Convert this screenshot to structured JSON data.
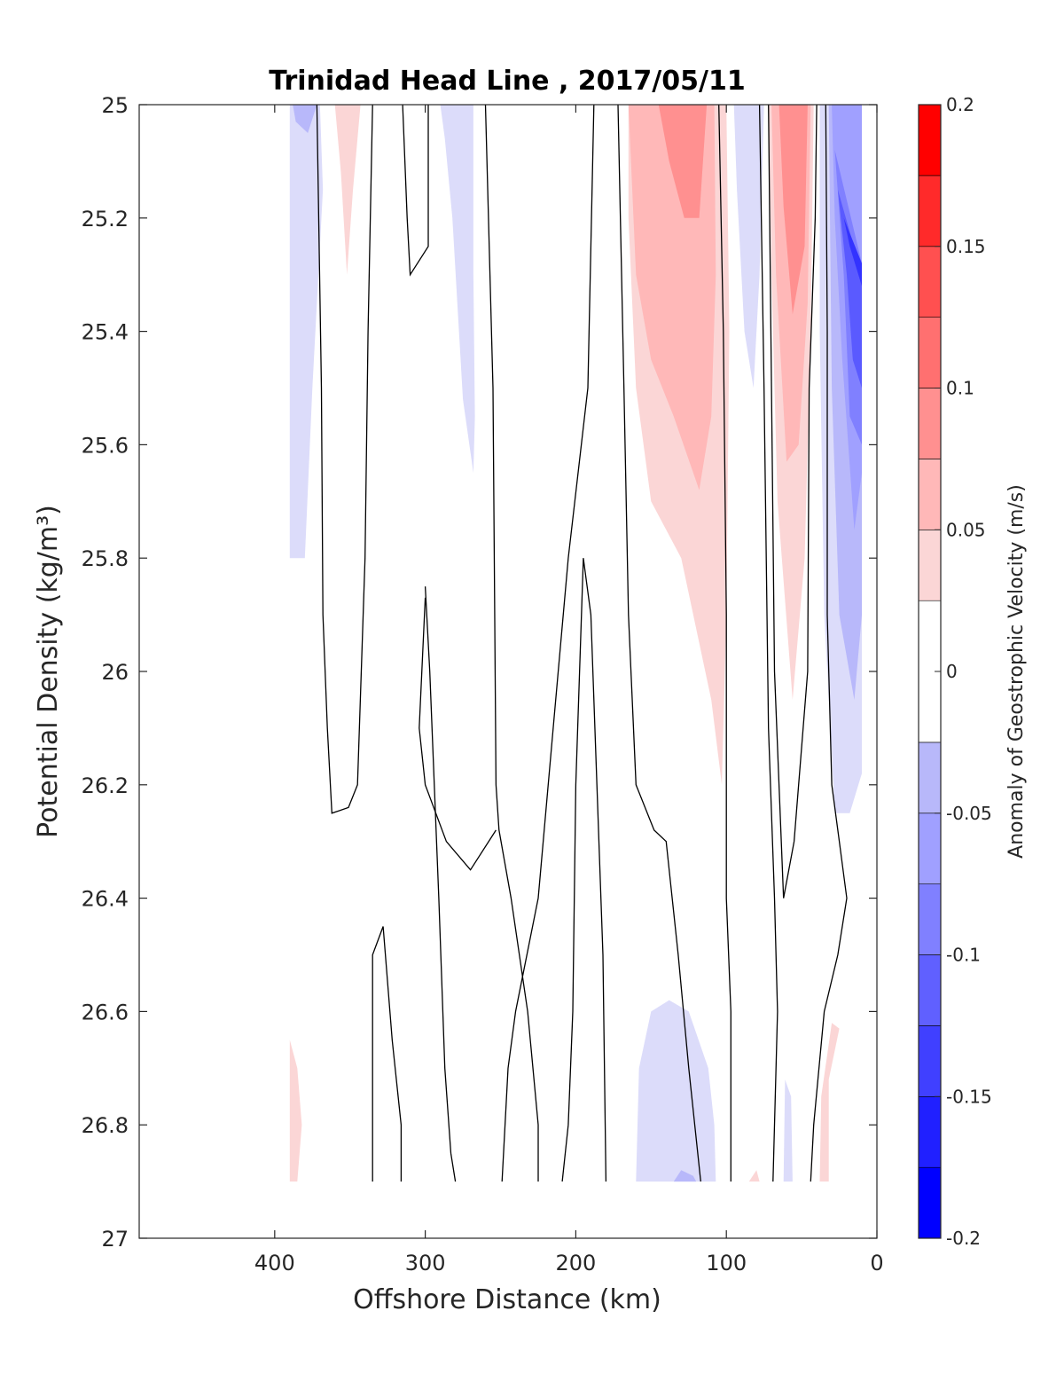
{
  "chart_data": {
    "type": "filled-contour",
    "title": "Trinidad Head Line , 2017/05/11",
    "xlabel": "Offshore Distance (km)",
    "ylabel": "Potential Density (kg/m³)",
    "x_reversed": true,
    "y_reversed": true,
    "xlim": [
      490,
      0
    ],
    "ylim": [
      25,
      27
    ],
    "x_ticks": [
      400,
      300,
      200,
      100,
      0
    ],
    "y_ticks": [
      25,
      25.2,
      25.4,
      25.6,
      25.8,
      26,
      26.2,
      26.4,
      26.6,
      26.8,
      27
    ],
    "colorbar": {
      "label": "Anomaly of Geostrophic Velocity (m/s)",
      "range": [
        -0.2,
        0.2
      ],
      "ticks": [
        -0.2,
        -0.15,
        -0.1,
        -0.05,
        0,
        0.05,
        0.1,
        0.15,
        0.2
      ],
      "tick_labels": [
        "-0.2",
        "-0.15",
        "-0.1",
        "-0.05",
        "0",
        "0.05",
        "0.1",
        "0.15",
        "0.2"
      ],
      "levels": [
        {
          "from": -0.2,
          "to": -0.175,
          "color": "#0000ff"
        },
        {
          "from": -0.175,
          "to": -0.15,
          "color": "#2020ff"
        },
        {
          "from": -0.15,
          "to": -0.125,
          "color": "#4040ff"
        },
        {
          "from": -0.125,
          "to": -0.1,
          "color": "#6060ff"
        },
        {
          "from": -0.1,
          "to": -0.075,
          "color": "#8080ff"
        },
        {
          "from": -0.075,
          "to": -0.05,
          "color": "#a0a0ff"
        },
        {
          "from": -0.05,
          "to": -0.025,
          "color": "#b8b8fa"
        },
        {
          "from": -0.025,
          "to": 0.025,
          "color": "#ffffff"
        },
        {
          "from": 0.025,
          "to": 0.05,
          "color": "#fbd6d6"
        },
        {
          "from": 0.05,
          "to": 0.075,
          "color": "#ffb8b8"
        },
        {
          "from": 0.075,
          "to": 0.1,
          "color": "#ff9090"
        },
        {
          "from": 0.1,
          "to": 0.125,
          "color": "#ff7070"
        },
        {
          "from": 0.125,
          "to": 0.15,
          "color": "#ff5050"
        },
        {
          "from": 0.15,
          "to": 0.175,
          "color": "#ff2a2a"
        },
        {
          "from": 0.175,
          "to": 0.2,
          "color": "#ff0000"
        }
      ]
    },
    "regions": [
      {
        "sign": "negative",
        "level": -0.035,
        "color": "#dcdcfa",
        "outline": [
          [
            390,
            25
          ],
          [
            370,
            25
          ],
          [
            368,
            25.15
          ],
          [
            375,
            25.5
          ],
          [
            380,
            25.8
          ],
          [
            390,
            25.8
          ]
        ]
      },
      {
        "sign": "negative",
        "level": -0.06,
        "color": "#b8b8fa",
        "outline": [
          [
            388,
            25
          ],
          [
            372,
            25
          ],
          [
            378,
            25.05
          ],
          [
            386,
            25.03
          ]
        ]
      },
      {
        "sign": "positive",
        "level": 0.035,
        "color": "#fbd6d6",
        "outline": [
          [
            360,
            25
          ],
          [
            343,
            25
          ],
          [
            348,
            25.15
          ],
          [
            352,
            25.3
          ],
          [
            356,
            25.12
          ]
        ]
      },
      {
        "sign": "negative",
        "level": -0.035,
        "color": "#dcdcfa",
        "outline": [
          [
            290,
            25
          ],
          [
            268,
            25
          ],
          [
            268,
            25.3
          ],
          [
            267,
            25.55
          ],
          [
            268,
            25.65
          ],
          [
            275,
            25.52
          ],
          [
            282,
            25.2
          ],
          [
            287,
            25.06
          ]
        ]
      },
      {
        "sign": "positive",
        "level": 0.035,
        "color": "#fbd6d6",
        "outline": [
          [
            165,
            25
          ],
          [
            100,
            25
          ],
          [
            98,
            25.4
          ],
          [
            100,
            25.9
          ],
          [
            103,
            26.2
          ],
          [
            110,
            26.05
          ],
          [
            130,
            25.8
          ],
          [
            150,
            25.7
          ],
          [
            160,
            25.5
          ],
          [
            165,
            25.2
          ]
        ]
      },
      {
        "sign": "positive",
        "level": 0.06,
        "color": "#ffb8b8",
        "outline": [
          [
            165,
            25
          ],
          [
            108,
            25
          ],
          [
            107,
            25.3
          ],
          [
            110,
            25.55
          ],
          [
            118,
            25.68
          ],
          [
            135,
            25.55
          ],
          [
            150,
            25.45
          ],
          [
            160,
            25.3
          ]
        ]
      },
      {
        "sign": "positive",
        "level": 0.085,
        "color": "#ff9090",
        "outline": [
          [
            145,
            25
          ],
          [
            113,
            25
          ],
          [
            118,
            25.2
          ],
          [
            128,
            25.2
          ],
          [
            138,
            25.1
          ]
        ]
      },
      {
        "sign": "negative",
        "level": -0.035,
        "color": "#dcdcfa",
        "outline": [
          [
            95,
            25
          ],
          [
            75,
            25
          ],
          [
            78,
            25.3
          ],
          [
            82,
            25.5
          ],
          [
            88,
            25.4
          ],
          [
            93,
            25.15
          ]
        ]
      },
      {
        "sign": "positive",
        "level": 0.035,
        "color": "#fbd6d6",
        "outline": [
          [
            72,
            25
          ],
          [
            42,
            25
          ],
          [
            44,
            25.4
          ],
          [
            48,
            25.8
          ],
          [
            56,
            26.05
          ],
          [
            66,
            25.7
          ],
          [
            70,
            25.3
          ]
        ]
      },
      {
        "sign": "positive",
        "level": 0.06,
        "color": "#ffb8b8",
        "outline": [
          [
            70,
            25
          ],
          [
            44,
            25
          ],
          [
            46,
            25.35
          ],
          [
            52,
            25.6
          ],
          [
            60,
            25.63
          ],
          [
            67,
            25.3
          ]
        ]
      },
      {
        "sign": "positive",
        "level": 0.085,
        "color": "#ff9090",
        "outline": [
          [
            65,
            25
          ],
          [
            46,
            25
          ],
          [
            48,
            25.25
          ],
          [
            56,
            25.37
          ],
          [
            62,
            25.18
          ]
        ]
      },
      {
        "sign": "negative",
        "level": -0.035,
        "color": "#dcdcfa",
        "outline": [
          [
            38,
            25
          ],
          [
            10,
            25
          ],
          [
            10,
            26.18
          ],
          [
            18,
            26.25
          ],
          [
            28,
            26.25
          ],
          [
            35,
            25.9
          ],
          [
            38,
            25.4
          ]
        ]
      },
      {
        "sign": "negative",
        "level": -0.06,
        "color": "#b8b8fa",
        "outline": [
          [
            32,
            25
          ],
          [
            10,
            25
          ],
          [
            10,
            25.9
          ],
          [
            15,
            26.05
          ],
          [
            25,
            25.9
          ],
          [
            30,
            25.5
          ]
        ]
      },
      {
        "sign": "negative",
        "level": -0.085,
        "color": "#a0a0ff",
        "outline": [
          [
            30,
            25
          ],
          [
            10,
            25
          ],
          [
            10,
            25.65
          ],
          [
            15,
            25.75
          ],
          [
            23,
            25.45
          ],
          [
            28,
            25.2
          ]
        ]
      },
      {
        "sign": "negative",
        "level": -0.11,
        "color": "#8080ff",
        "outline": [
          [
            28,
            25.08
          ],
          [
            10,
            25.28
          ],
          [
            10,
            25.6
          ],
          [
            18,
            25.55
          ],
          [
            22,
            25.3
          ]
        ]
      },
      {
        "sign": "negative",
        "level": -0.135,
        "color": "#5a5aff",
        "outline": [
          [
            26,
            25.15
          ],
          [
            10,
            25.3
          ],
          [
            10,
            25.5
          ],
          [
            16,
            25.45
          ],
          [
            20,
            25.3
          ]
        ]
      },
      {
        "sign": "negative",
        "level": -0.16,
        "color": "#3333ff",
        "outline": [
          [
            22,
            25.2
          ],
          [
            10,
            25.28
          ],
          [
            10,
            25.32
          ],
          [
            18,
            25.25
          ]
        ]
      },
      {
        "sign": "positive",
        "level": 0.035,
        "color": "#fbd6d6",
        "outline": [
          [
            390,
            26.65
          ],
          [
            390,
            26.9
          ],
          [
            385,
            26.9
          ],
          [
            382,
            26.8
          ],
          [
            385,
            26.7
          ]
        ]
      },
      {
        "sign": "negative",
        "level": -0.035,
        "color": "#dcdcfa",
        "outline": [
          [
            160,
            26.9
          ],
          [
            158,
            26.7
          ],
          [
            150,
            26.6
          ],
          [
            138,
            26.58
          ],
          [
            125,
            26.6
          ],
          [
            112,
            26.7
          ],
          [
            108,
            26.8
          ],
          [
            107,
            26.9
          ]
        ]
      },
      {
        "sign": "negative",
        "level": -0.06,
        "color": "#b8b8fa",
        "outline": [
          [
            135,
            26.9
          ],
          [
            130,
            26.88
          ],
          [
            122,
            26.89
          ],
          [
            120,
            26.9
          ]
        ]
      },
      {
        "sign": "positive",
        "level": 0.035,
        "color": "#fbd6d6",
        "outline": [
          [
            85,
            26.9
          ],
          [
            80,
            26.88
          ],
          [
            78,
            26.9
          ]
        ]
      },
      {
        "sign": "negative",
        "level": -0.035,
        "color": "#dcdcfa",
        "outline": [
          [
            62,
            26.9
          ],
          [
            61,
            26.72
          ],
          [
            57,
            26.75
          ],
          [
            56,
            26.9
          ]
        ]
      },
      {
        "sign": "positive",
        "level": 0.035,
        "color": "#fbd6d6",
        "outline": [
          [
            38,
            26.9
          ],
          [
            37,
            26.75
          ],
          [
            30,
            26.62
          ],
          [
            25,
            26.63
          ],
          [
            32,
            26.72
          ],
          [
            32,
            26.9
          ]
        ]
      }
    ],
    "zero_contours": [
      [
        [
          372,
          25
        ],
        [
          369,
          25.5
        ],
        [
          368,
          25.9
        ],
        [
          365,
          26.1
        ],
        [
          362,
          26.25
        ],
        [
          351,
          26.24
        ],
        [
          345,
          26.2
        ],
        [
          340,
          25.8
        ],
        [
          338,
          25.4
        ],
        [
          335,
          25
        ]
      ],
      [
        [
          315,
          25
        ],
        [
          312,
          25.2
        ],
        [
          310,
          25.3
        ],
        [
          298,
          25.25
        ],
        [
          298,
          25
        ]
      ],
      [
        [
          300,
          25.85
        ],
        [
          297,
          26.0
        ],
        [
          291,
          26.4
        ],
        [
          287,
          26.7
        ],
        [
          283,
          26.85
        ],
        [
          280,
          26.9
        ]
      ],
      [
        [
          335,
          26.9
        ],
        [
          335,
          26.5
        ],
        [
          328,
          26.45
        ],
        [
          322,
          26.65
        ],
        [
          316,
          26.8
        ],
        [
          316,
          26.9
        ]
      ],
      [
        [
          260,
          25
        ],
        [
          255,
          25.5
        ],
        [
          253,
          26.2
        ],
        [
          251,
          26.28
        ],
        [
          243,
          26.4
        ],
        [
          232,
          26.6
        ],
        [
          225,
          26.8
        ],
        [
          225,
          26.9
        ]
      ],
      [
        [
          300,
          25.87
        ],
        [
          304,
          26.1
        ],
        [
          300,
          26.2
        ],
        [
          286,
          26.3
        ],
        [
          270,
          26.35
        ],
        [
          253,
          26.28
        ]
      ],
      [
        [
          188,
          25
        ],
        [
          192,
          25.5
        ],
        [
          205,
          25.8
        ],
        [
          215,
          26.1
        ],
        [
          225,
          26.4
        ],
        [
          240,
          26.6
        ],
        [
          245,
          26.7
        ],
        [
          249,
          26.9
        ]
      ],
      [
        [
          209,
          26.9
        ],
        [
          205,
          26.8
        ],
        [
          202,
          26.6
        ],
        [
          200,
          26.2
        ],
        [
          195,
          25.8
        ],
        [
          190,
          25.9
        ],
        [
          186,
          26.2
        ],
        [
          182,
          26.5
        ],
        [
          180,
          26.9
        ]
      ],
      [
        [
          172,
          25
        ],
        [
          168,
          25.5
        ],
        [
          165,
          25.9
        ],
        [
          160,
          26.2
        ],
        [
          148,
          26.28
        ],
        [
          140,
          26.3
        ],
        [
          132,
          26.5
        ],
        [
          125,
          26.7
        ],
        [
          117,
          26.9
        ]
      ],
      [
        [
          105,
          25
        ],
        [
          102,
          25.4
        ],
        [
          100,
          25.9
        ],
        [
          100,
          26.4
        ],
        [
          97,
          26.6
        ],
        [
          97,
          26.9
        ]
      ],
      [
        [
          78,
          25
        ],
        [
          75,
          25.5
        ],
        [
          72,
          26.1
        ],
        [
          68,
          26.4
        ],
        [
          66,
          26.6
        ],
        [
          69,
          26.9
        ]
      ],
      [
        [
          72,
          25
        ],
        [
          70,
          25.5
        ],
        [
          68,
          26.0
        ],
        [
          62,
          26.4
        ],
        [
          55,
          26.3
        ],
        [
          46,
          26.0
        ],
        [
          45,
          25.5
        ],
        [
          41,
          25.2
        ],
        [
          40,
          25
        ]
      ],
      [
        [
          34,
          25
        ],
        [
          33,
          25.4
        ],
        [
          33,
          25.9
        ],
        [
          30,
          26.2
        ],
        [
          25,
          26.3
        ],
        [
          20,
          26.4
        ],
        [
          26,
          26.5
        ],
        [
          35,
          26.6
        ],
        [
          42,
          26.8
        ],
        [
          44,
          26.9
        ]
      ]
    ]
  }
}
